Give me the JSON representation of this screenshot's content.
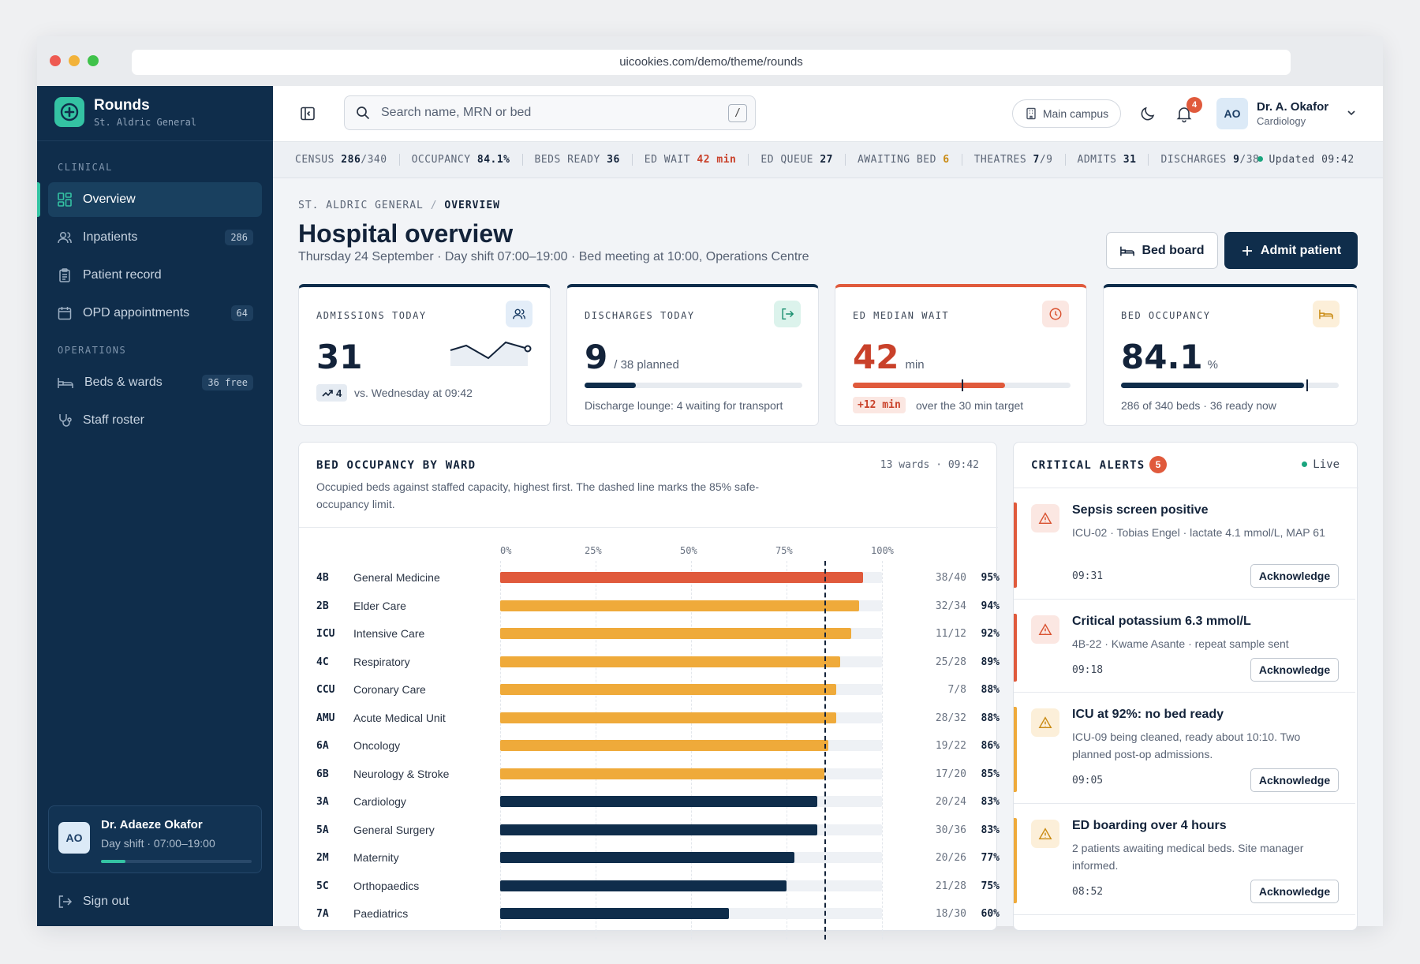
{
  "browser": {
    "url": "uicookies.com/demo/theme/rounds"
  },
  "sidebar": {
    "brand_name": "Rounds",
    "brand_sub": "St. Aldric General",
    "section_clinical": "CLINICAL",
    "section_operations": "OPERATIONS",
    "items": [
      {
        "label": "Overview",
        "icon": "grid-icon",
        "active": true
      },
      {
        "label": "Inpatients",
        "badge": "286",
        "icon": "users-icon"
      },
      {
        "label": "Patient record",
        "icon": "clipboard-icon"
      },
      {
        "label": "OPD appointments",
        "badge": "64",
        "icon": "calendar-icon"
      },
      {
        "label": "Beds & wards",
        "badge": "36 free",
        "icon": "bed-icon"
      },
      {
        "label": "Staff roster",
        "icon": "stethoscope-icon"
      }
    ],
    "user": {
      "initials": "AO",
      "name": "Dr. Adaeze Okafor",
      "shift": "Day shift · 07:00–19:00",
      "shift_progress": 0.16
    },
    "sign_out": "Sign out"
  },
  "topbar": {
    "search_placeholder": "Search name, MRN or bed",
    "search_shortcut": "/",
    "campus": "Main campus",
    "notifications": "4",
    "user_initials": "AO",
    "user_name": "Dr. A. Okafor",
    "user_role": "Cardiology"
  },
  "ticker": {
    "census_label": "CENSUS",
    "census": "286",
    "census_cap": "/340",
    "occupancy_label": "OCCUPANCY",
    "occupancy": "84.1%",
    "beds_ready_label": "BEDS READY",
    "beds_ready": "36",
    "ed_wait_label": "ED WAIT",
    "ed_wait": "42 min",
    "ed_queue_label": "ED QUEUE",
    "ed_queue": "27",
    "awaiting_label": "AWAITING BED",
    "awaiting": "6",
    "theatres_label": "THEATRES",
    "theatres": "7",
    "theatres_cap": "/9",
    "admits_label": "ADMITS",
    "admits": "31",
    "discharges_label": "DISCHARGES",
    "discharges": "9",
    "discharges_cap": "/38",
    "updated": "Updated 09:42"
  },
  "page": {
    "crumb_root": "ST. ALDRIC GENERAL",
    "crumb_current": "OVERVIEW",
    "title": "Hospital overview",
    "subtitle": "Thursday 24 September · Day shift 07:00–19:00 · Bed meeting at 10:00, Operations Centre",
    "bed_board": "Bed board",
    "admit": "Admit patient"
  },
  "kpis": {
    "admissions": {
      "label": "ADMISSIONS TODAY",
      "value": "31",
      "delta": "4",
      "foot": "vs. Wednesday at 09:42"
    },
    "discharges": {
      "label": "DISCHARGES TODAY",
      "value": "9",
      "planned": "/ 38 planned",
      "progress": 0.237,
      "foot": "Discharge lounge: 4 waiting for transport"
    },
    "ed_wait": {
      "label": "ED MEDIAN WAIT",
      "value": "42",
      "unit": "min",
      "progress": 0.7,
      "target": 0.5,
      "delta": "+12 min",
      "foot": "over the 30 min target"
    },
    "occupancy": {
      "label": "BED OCCUPANCY",
      "value": "84.1",
      "unit": "%",
      "progress": 0.841,
      "target": 0.85,
      "foot": "286 of 340 beds · 36 ready now"
    }
  },
  "bed_panel": {
    "title": "BED OCCUPANCY BY WARD",
    "meta": "13 wards · 09:42",
    "description": "Occupied beds against staffed capacity, highest first. The dashed line marks the 85% safe-occupancy limit."
  },
  "chart_data": {
    "type": "bar",
    "orientation": "horizontal",
    "title": "BED OCCUPANCY BY WARD",
    "x_ticks": [
      "0%",
      "25%",
      "50%",
      "75%",
      "100%"
    ],
    "xlim": [
      0,
      100
    ],
    "reference_line": 85,
    "colors": {
      "critical": "#e05a3c",
      "warning": "#efaa3a",
      "normal": "#0f2d4b"
    },
    "wards": [
      {
        "code": "4B",
        "name": "General Medicine",
        "count": "38/40",
        "pct": 95,
        "label": "95%",
        "level": "critical"
      },
      {
        "code": "2B",
        "name": "Elder Care",
        "count": "32/34",
        "pct": 94,
        "label": "94%",
        "level": "warning"
      },
      {
        "code": "ICU",
        "name": "Intensive Care",
        "count": "11/12",
        "pct": 92,
        "label": "92%",
        "level": "warning"
      },
      {
        "code": "4C",
        "name": "Respiratory",
        "count": "25/28",
        "pct": 89,
        "label": "89%",
        "level": "warning"
      },
      {
        "code": "CCU",
        "name": "Coronary Care",
        "count": "7/8",
        "pct": 88,
        "label": "88%",
        "level": "warning"
      },
      {
        "code": "AMU",
        "name": "Acute Medical Unit",
        "count": "28/32",
        "pct": 88,
        "label": "88%",
        "level": "warning"
      },
      {
        "code": "6A",
        "name": "Oncology",
        "count": "19/22",
        "pct": 86,
        "label": "86%",
        "level": "warning"
      },
      {
        "code": "6B",
        "name": "Neurology & Stroke",
        "count": "17/20",
        "pct": 85,
        "label": "85%",
        "level": "warning"
      },
      {
        "code": "3A",
        "name": "Cardiology",
        "count": "20/24",
        "pct": 83,
        "label": "83%",
        "level": "normal"
      },
      {
        "code": "5A",
        "name": "General Surgery",
        "count": "30/36",
        "pct": 83,
        "label": "83%",
        "level": "normal"
      },
      {
        "code": "2M",
        "name": "Maternity",
        "count": "20/26",
        "pct": 77,
        "label": "77%",
        "level": "normal"
      },
      {
        "code": "5C",
        "name": "Orthopaedics",
        "count": "21/28",
        "pct": 75,
        "label": "75%",
        "level": "normal"
      },
      {
        "code": "7A",
        "name": "Paediatrics",
        "count": "18/30",
        "pct": 60,
        "label": "60%",
        "level": "normal"
      }
    ]
  },
  "alerts_panel": {
    "title": "CRITICAL ALERTS",
    "count": "5",
    "live": "Live",
    "ack_label": "Acknowledge",
    "items": [
      {
        "title": "Sepsis screen positive",
        "desc": "ICU-02 · Tobias Engel · lactate 4.1 mmol/L, MAP 61",
        "time": "09:31",
        "severity": "critical"
      },
      {
        "title": "Critical potassium 6.3 mmol/L",
        "desc": "4B-22 · Kwame Asante · repeat sample sent",
        "time": "09:18",
        "severity": "critical"
      },
      {
        "title": "ICU at 92%: no bed ready",
        "desc": "ICU-09 being cleaned, ready about 10:10. Two planned post-op admissions.",
        "time": "09:05",
        "severity": "warning"
      },
      {
        "title": "ED boarding over 4 hours",
        "desc": "2 patients awaiting medical beds. Site manager informed.",
        "time": "08:52",
        "severity": "warning"
      }
    ]
  },
  "colors": {
    "navy": "#0f2d4b",
    "teal": "#34c3a3",
    "red": "#e05a3c",
    "amber": "#efaa3a"
  }
}
